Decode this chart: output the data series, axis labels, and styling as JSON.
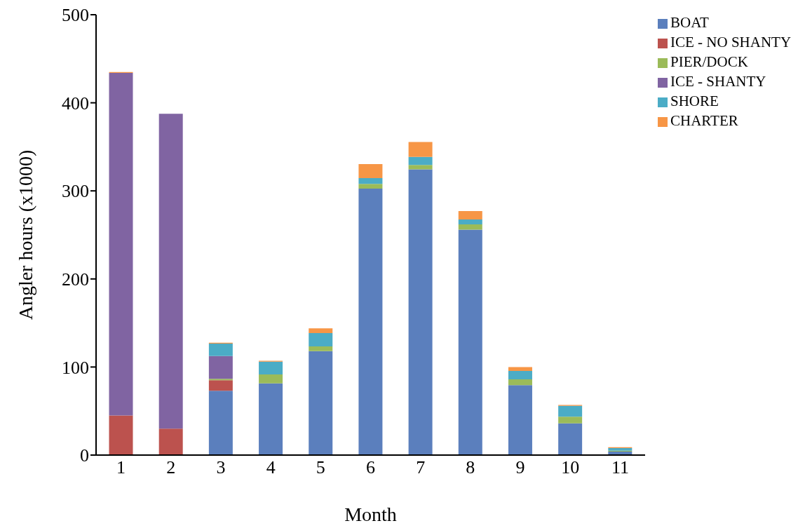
{
  "chart_data": {
    "type": "bar",
    "stacked": true,
    "xlabel": "Month",
    "ylabel": "Angler hours (x1000)",
    "categories": [
      "1",
      "2",
      "3",
      "4",
      "5",
      "6",
      "7",
      "8",
      "9",
      "10",
      "11"
    ],
    "series": [
      {
        "name": "BOAT",
        "color": "#5b7fbd",
        "values": [
          0,
          0,
          73,
          81.5,
          118,
          302.5,
          324.5,
          256,
          79.5,
          36,
          4
        ]
      },
      {
        "name": "ICE - NO SHANTY",
        "color": "#bc524e",
        "values": [
          45,
          30,
          12,
          0,
          0,
          0,
          0,
          0,
          0,
          0,
          0
        ]
      },
      {
        "name": "PIER/DOCK",
        "color": "#9bbb59",
        "values": [
          0,
          0,
          1.5,
          10,
          5.5,
          5.5,
          5,
          6,
          6.5,
          7.5,
          1
        ]
      },
      {
        "name": "ICE - SHANTY",
        "color": "#8064a2",
        "values": [
          389,
          357.5,
          26,
          0,
          0,
          0,
          0,
          0,
          0,
          0,
          0
        ]
      },
      {
        "name": "SHORE",
        "color": "#4bacc6",
        "values": [
          0,
          0,
          14,
          14.5,
          15,
          6.5,
          9,
          5.5,
          9.5,
          12.5,
          3
        ]
      },
      {
        "name": "CHARTER",
        "color": "#f79646",
        "values": [
          1,
          0,
          1,
          1,
          5.5,
          16,
          17,
          9.5,
          4.5,
          1,
          1
        ]
      }
    ],
    "ylim": [
      0,
      500
    ],
    "yticks": [
      0,
      100,
      200,
      300,
      400,
      500
    ],
    "grid": false,
    "legend": "top right"
  }
}
